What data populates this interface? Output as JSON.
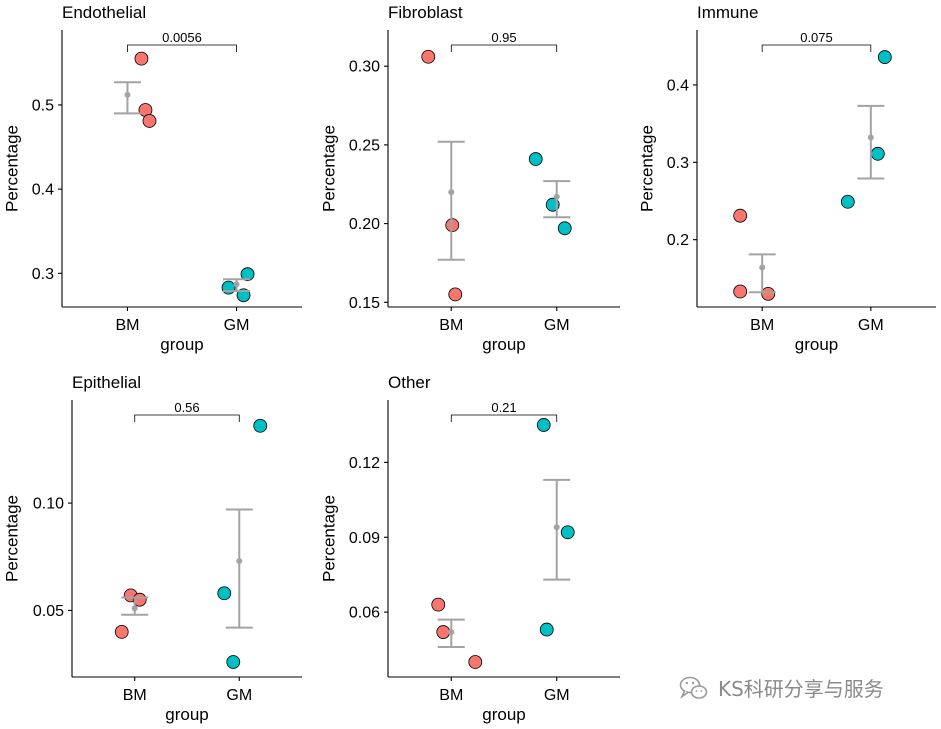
{
  "chart_data": [
    {
      "type": "scatter",
      "title": "Endothelial",
      "xlabel": "group",
      "ylabel": "Percentage",
      "categories": [
        "BM",
        "GM"
      ],
      "values": [
        [
          0.555,
          0.494,
          0.481
        ],
        [
          0.299,
          0.283,
          0.274
        ]
      ],
      "mean": [
        0.512,
        0.287
      ],
      "error_low": [
        0.49,
        0.279
      ],
      "error_high": [
        0.527,
        0.293
      ],
      "ylim": [
        0.26,
        0.589
      ],
      "yticks": [
        0.3,
        0.4,
        0.5
      ],
      "ytick_labels": [
        "0.3",
        "0.4",
        "0.5"
      ],
      "p_value": "0.0056"
    },
    {
      "type": "scatter",
      "title": "Fibroblast",
      "xlabel": "group",
      "ylabel": "Percentage",
      "categories": [
        "BM",
        "GM"
      ],
      "values": [
        [
          0.306,
          0.199,
          0.155
        ],
        [
          0.241,
          0.212,
          0.197
        ]
      ],
      "mean": [
        0.22,
        0.217
      ],
      "error_low": [
        0.177,
        0.204
      ],
      "error_high": [
        0.252,
        0.227
      ],
      "ylim": [
        0.147,
        0.323
      ],
      "yticks": [
        0.15,
        0.2,
        0.25,
        0.3
      ],
      "ytick_labels": [
        "0.15",
        "0.20",
        "0.25",
        "0.30"
      ],
      "p_value": "0.95"
    },
    {
      "type": "scatter",
      "title": "Immune",
      "xlabel": "group",
      "ylabel": "Percentage",
      "categories": [
        "BM",
        "GM"
      ],
      "values": [
        [
          0.231,
          0.133,
          0.13
        ],
        [
          0.249,
          0.311,
          0.436
        ]
      ],
      "mean": [
        0.164,
        0.332
      ],
      "error_low": [
        0.132,
        0.279
      ],
      "error_high": [
        0.181,
        0.373
      ],
      "ylim": [
        0.113,
        0.471
      ],
      "yticks": [
        0.2,
        0.3,
        0.4
      ],
      "ytick_labels": [
        "0.2",
        "0.3",
        "0.4"
      ],
      "p_value": "0.075"
    },
    {
      "type": "scatter",
      "title": "Epithelial",
      "xlabel": "group",
      "ylabel": "Percentage",
      "categories": [
        "BM",
        "GM"
      ],
      "values": [
        [
          0.057,
          0.055,
          0.04
        ],
        [
          0.136,
          0.058,
          0.026
        ]
      ],
      "mean": [
        0.051,
        0.073
      ],
      "error_low": [
        0.048,
        0.042
      ],
      "error_high": [
        0.056,
        0.097
      ],
      "ylim": [
        0.019,
        0.148
      ],
      "yticks": [
        0.05,
        0.1
      ],
      "ytick_labels": [
        "0.05",
        "0.10"
      ],
      "p_value": "0.56"
    },
    {
      "type": "scatter",
      "title": "Other",
      "xlabel": "group",
      "ylabel": "Percentage",
      "categories": [
        "BM",
        "GM"
      ],
      "values": [
        [
          0.063,
          0.052,
          0.04
        ],
        [
          0.135,
          0.092,
          0.053
        ]
      ],
      "mean": [
        0.052,
        0.094
      ],
      "error_low": [
        0.046,
        0.073
      ],
      "error_high": [
        0.057,
        0.113
      ],
      "ylim": [
        0.034,
        0.145
      ],
      "yticks": [
        0.06,
        0.09,
        0.12
      ],
      "ytick_labels": [
        "0.06",
        "0.09",
        "0.12"
      ],
      "p_value": "0.21"
    }
  ],
  "palette": {
    "BM": "#F8766D",
    "GM": "#00BFC4",
    "summary": "#A3A3A3",
    "point_outline": "#000000"
  },
  "watermark": {
    "icon": "wechat-icon",
    "text": "KS科研分享与服务"
  }
}
